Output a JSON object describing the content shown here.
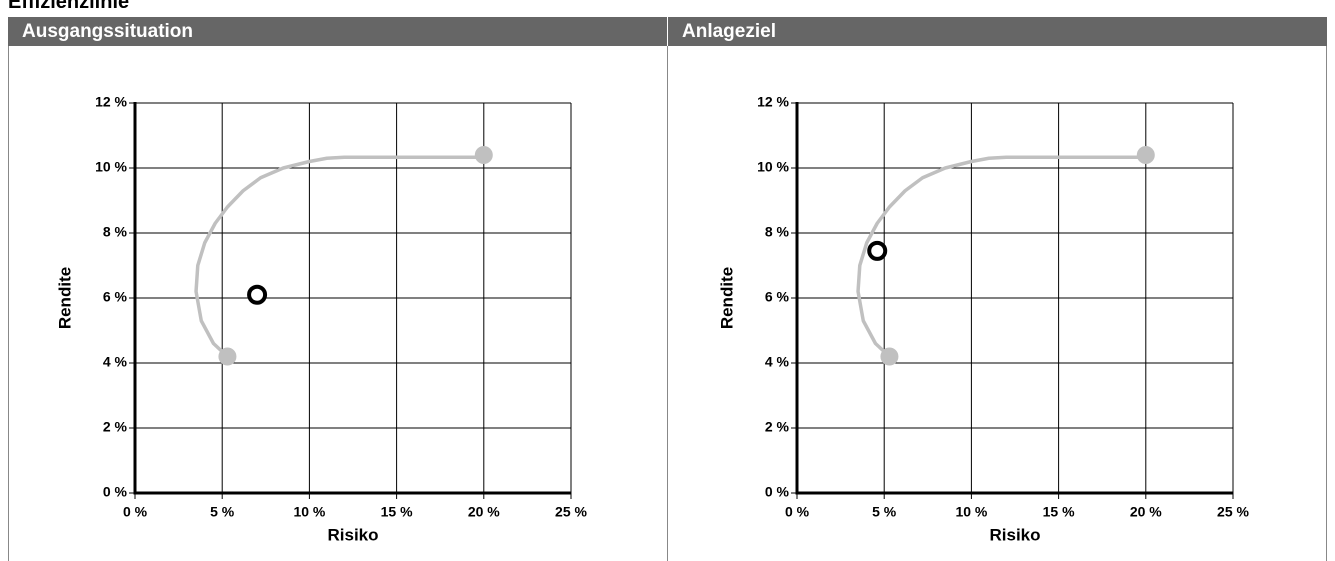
{
  "page_title": "Effizienzlinie",
  "chart_data": [
    {
      "type": "line",
      "title": "Ausgangssituation",
      "x_label": "Risiko",
      "y_label": "Rendite",
      "xlim": [
        0,
        25
      ],
      "ylim": [
        0,
        12
      ],
      "grid": true,
      "xticks": [
        {
          "value": 0,
          "label": "0 %"
        },
        {
          "value": 5,
          "label": "5 %"
        },
        {
          "value": 10,
          "label": "10 %"
        },
        {
          "value": 15,
          "label": "15 %"
        },
        {
          "value": 20,
          "label": "20 %"
        },
        {
          "value": 25,
          "label": "25 %"
        }
      ],
      "yticks": [
        {
          "value": 0,
          "label": "0 %"
        },
        {
          "value": 2,
          "label": "2 %"
        },
        {
          "value": 4,
          "label": "4 %"
        },
        {
          "value": 6,
          "label": "6 %"
        },
        {
          "value": 8,
          "label": "8 %"
        },
        {
          "value": 10,
          "label": "10 %"
        },
        {
          "value": 12,
          "label": "12 %"
        }
      ],
      "series": [
        {
          "type": "line",
          "color": "#c0c0c0",
          "x": [
            5.3,
            4.5,
            3.8,
            3.5,
            3.6,
            4.0,
            4.6,
            5.3,
            6.2,
            7.2,
            8.5,
            10,
            11,
            12,
            20
          ],
          "values": [
            4.2,
            4.6,
            5.3,
            6.2,
            7.0,
            7.7,
            8.3,
            8.8,
            9.3,
            9.7,
            10.0,
            10.2,
            10.3,
            10.33,
            10.33
          ]
        },
        {
          "type": "scatter",
          "marker": "dot",
          "color": "#c0c0c0",
          "x": [
            5.3,
            20
          ],
          "values": [
            4.2,
            10.4
          ]
        },
        {
          "type": "scatter",
          "marker": "ring",
          "color": "#000000",
          "x": [
            7.0
          ],
          "values": [
            6.1
          ]
        }
      ]
    },
    {
      "type": "line",
      "title": "Anlageziel",
      "x_label": "Risiko",
      "y_label": "Rendite",
      "xlim": [
        0,
        25
      ],
      "ylim": [
        0,
        12
      ],
      "grid": true,
      "xticks": [
        {
          "value": 0,
          "label": "0 %"
        },
        {
          "value": 5,
          "label": "5 %"
        },
        {
          "value": 10,
          "label": "10 %"
        },
        {
          "value": 15,
          "label": "15 %"
        },
        {
          "value": 20,
          "label": "20 %"
        },
        {
          "value": 25,
          "label": "25 %"
        }
      ],
      "yticks": [
        {
          "value": 0,
          "label": "0 %"
        },
        {
          "value": 2,
          "label": "2 %"
        },
        {
          "value": 4,
          "label": "4 %"
        },
        {
          "value": 6,
          "label": "6 %"
        },
        {
          "value": 8,
          "label": "8 %"
        },
        {
          "value": 10,
          "label": "10 %"
        },
        {
          "value": 12,
          "label": "12 %"
        }
      ],
      "series": [
        {
          "type": "line",
          "color": "#c0c0c0",
          "x": [
            5.3,
            4.5,
            3.8,
            3.5,
            3.6,
            4.0,
            4.6,
            5.3,
            6.2,
            7.2,
            8.5,
            10,
            11,
            12,
            20
          ],
          "values": [
            4.2,
            4.6,
            5.3,
            6.2,
            7.0,
            7.7,
            8.3,
            8.8,
            9.3,
            9.7,
            10.0,
            10.2,
            10.3,
            10.33,
            10.33
          ]
        },
        {
          "type": "scatter",
          "marker": "dot",
          "color": "#c0c0c0",
          "x": [
            5.3,
            20
          ],
          "values": [
            4.2,
            10.4
          ]
        },
        {
          "type": "scatter",
          "marker": "ring",
          "color": "#000000",
          "x": [
            4.6
          ],
          "values": [
            7.45
          ]
        }
      ]
    }
  ]
}
